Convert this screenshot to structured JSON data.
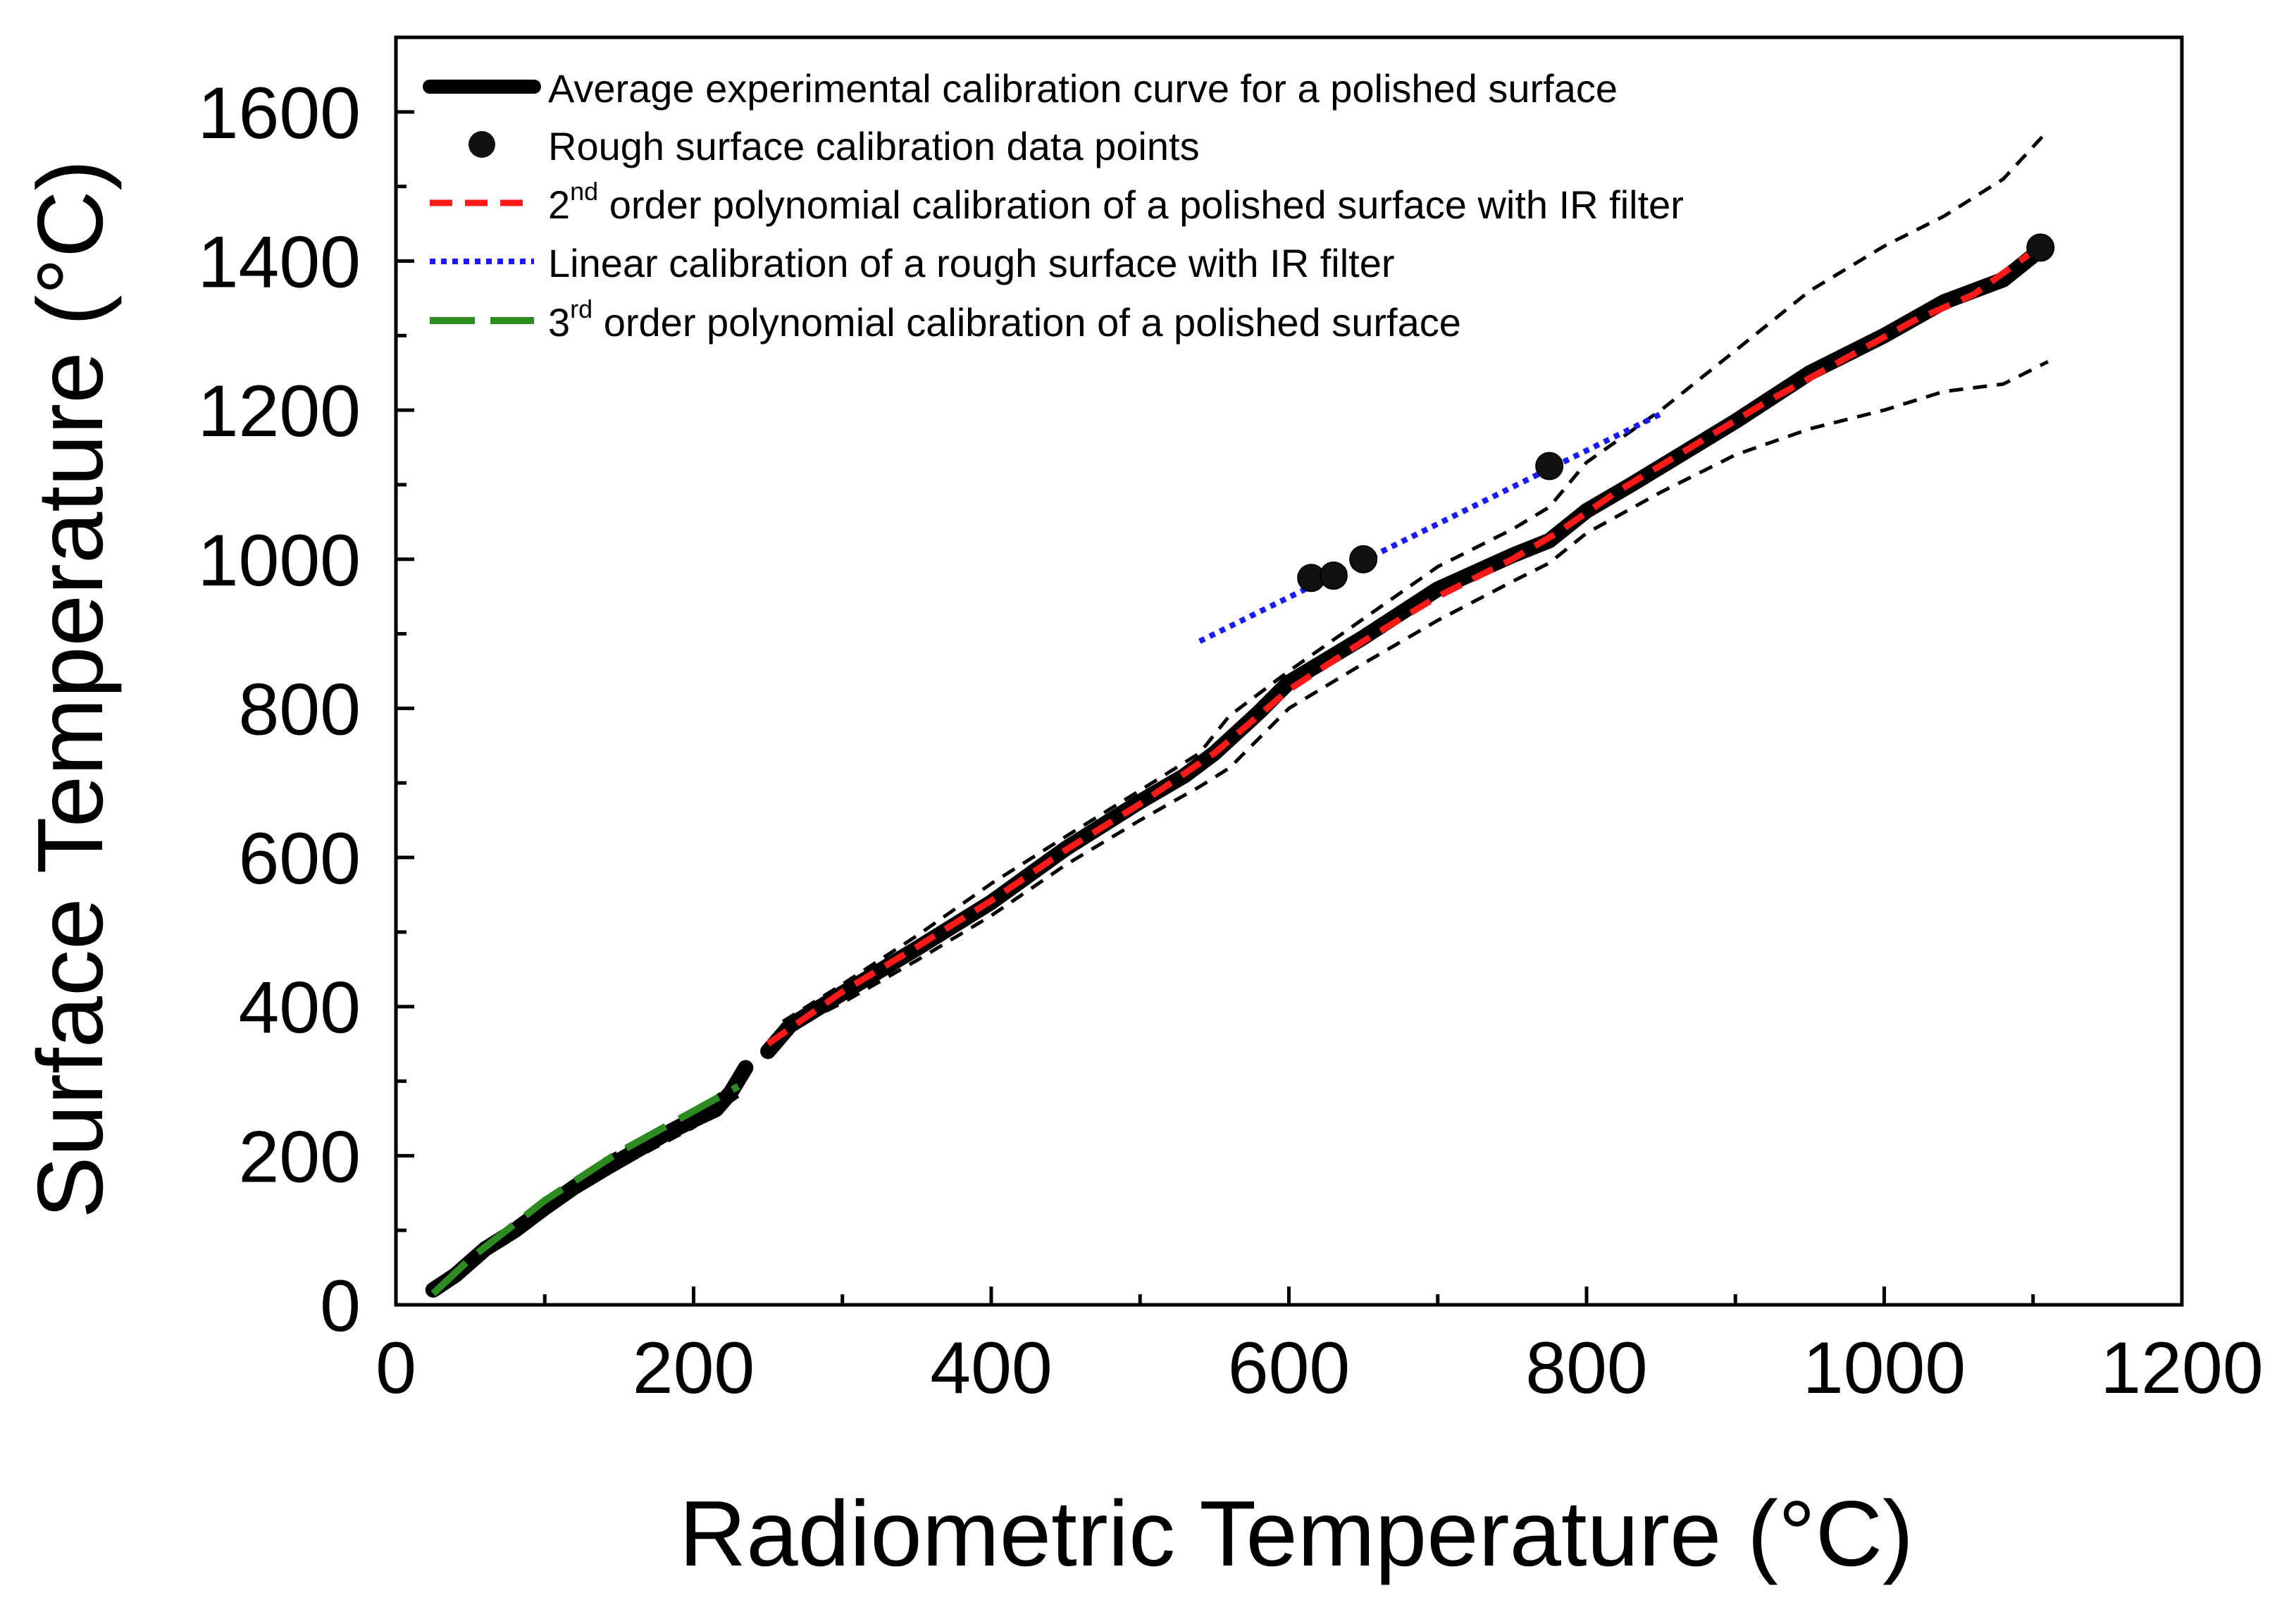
{
  "chart_data": {
    "type": "line",
    "xlabel": "Radiometric Temperature (°C)",
    "ylabel": "Surface Temperature (°C)",
    "xlim": [
      0,
      1200
    ],
    "ylim": [
      0,
      1700
    ],
    "xticks": [
      0,
      200,
      400,
      600,
      800,
      1000,
      1200
    ],
    "xtick_labels": [
      "0",
      "200",
      "400",
      "600",
      "800",
      "1000",
      "1200"
    ],
    "yticks": [
      0,
      200,
      400,
      600,
      800,
      1000,
      1200,
      1400,
      1600
    ],
    "ytick_labels": [
      "0",
      "200",
      "400",
      "600",
      "800",
      "1000",
      "1200",
      "1400",
      "1600"
    ],
    "x_minor_step": 100,
    "y_minor_step": 100,
    "grid": false,
    "legend_position": "top-left",
    "legend": [
      {
        "key": "avg",
        "text": "Average experimental calibration curve for a polished surface",
        "sup": "",
        "rest": ""
      },
      {
        "key": "rough",
        "text": "Rough surface calibration data points",
        "sup": "",
        "rest": ""
      },
      {
        "key": "poly2",
        "text": "2",
        "sup": "nd",
        "rest": " order polynomial calibration of a polished surface with IR filter"
      },
      {
        "key": "linear",
        "text": "Linear calibration of a rough surface with IR filter",
        "sup": "",
        "rest": ""
      },
      {
        "key": "poly3",
        "text": "3",
        "sup": "rd",
        "rest": " order polynomial calibration of a polished surface"
      }
    ],
    "colors": {
      "avg": "#000000",
      "rough": "#111111",
      "poly2": "#ff1a1a",
      "linear": "#1a1aff",
      "poly3": "#2e8b22",
      "bounds": "#000000",
      "axes": "#000000"
    },
    "series": [
      {
        "name": "Average experimental calibration curve for a polished surface",
        "style": "solid-thick",
        "segments": [
          [
            [
              25,
              20
            ],
            [
              40,
              40
            ],
            [
              60,
              75
            ],
            [
              80,
              100
            ],
            [
              100,
              130
            ],
            [
              120,
              158
            ],
            [
              140,
              182
            ],
            [
              160,
              205
            ],
            [
              180,
              228
            ],
            [
              200,
              248
            ],
            [
              215,
              262
            ],
            [
              225,
              285
            ],
            [
              235,
              318
            ]
          ],
          [
            [
              250,
              340
            ],
            [
              265,
              375
            ],
            [
              300,
              418
            ],
            [
              350,
              478
            ],
            [
              400,
              540
            ],
            [
              450,
              612
            ],
            [
              500,
              675
            ],
            [
              530,
              710
            ],
            [
              550,
              740
            ],
            [
              580,
              795
            ],
            [
              600,
              835
            ],
            [
              650,
              895
            ],
            [
              700,
              960
            ],
            [
              750,
              1005
            ],
            [
              775,
              1025
            ],
            [
              800,
              1065
            ],
            [
              830,
              1100
            ],
            [
              900,
              1185
            ],
            [
              950,
              1250
            ],
            [
              1000,
              1300
            ],
            [
              1040,
              1345
            ],
            [
              1080,
              1375
            ],
            [
              1105,
              1415
            ]
          ]
        ]
      },
      {
        "name": "Rough surface calibration data points",
        "style": "markers",
        "points": [
          [
            615,
            975
          ],
          [
            630,
            978
          ],
          [
            650,
            1000
          ],
          [
            775,
            1125
          ],
          [
            1105,
            1418
          ]
        ]
      },
      {
        "name": "2nd order polynomial calibration of a polished surface with IR filter",
        "style": "dashed",
        "segments": [
          [
            [
              250,
              350
            ],
            [
              300,
              420
            ],
            [
              350,
              480
            ],
            [
              400,
              542
            ],
            [
              450,
              610
            ],
            [
              500,
              672
            ],
            [
              550,
              740
            ],
            [
              600,
              825
            ],
            [
              650,
              890
            ],
            [
              700,
              950
            ],
            [
              750,
              1000
            ],
            [
              780,
              1035
            ],
            [
              820,
              1090
            ],
            [
              870,
              1150
            ],
            [
              920,
              1210
            ],
            [
              970,
              1265
            ],
            [
              1020,
              1320
            ],
            [
              1060,
              1355
            ],
            [
              1105,
              1420
            ]
          ]
        ]
      },
      {
        "name": "Linear calibration of a rough surface with IR filter",
        "style": "dotted",
        "segments": [
          [
            [
              540,
              890
            ],
            [
              850,
              1195
            ]
          ]
        ]
      },
      {
        "name": "3rd order polynomial calibration of a polished surface",
        "style": "dash-long",
        "segments": [
          [
            [
              25,
              15
            ],
            [
              50,
              62
            ],
            [
              100,
              140
            ],
            [
              150,
              205
            ],
            [
              200,
              260
            ],
            [
              230,
              293
            ]
          ]
        ]
      },
      {
        "name": "Upper bound",
        "style": "thin-dashed",
        "segments": [
          [
            [
              140,
              195
            ],
            [
              200,
              258
            ],
            [
              230,
              300
            ]
          ],
          [
            [
              260,
              380
            ],
            [
              300,
              430
            ],
            [
              350,
              495
            ],
            [
              400,
              565
            ],
            [
              450,
              628
            ],
            [
              500,
              690
            ],
            [
              540,
              740
            ],
            [
              560,
              790
            ],
            [
              600,
              850
            ],
            [
              650,
              920
            ],
            [
              700,
              990
            ],
            [
              750,
              1040
            ],
            [
              775,
              1070
            ],
            [
              800,
              1130
            ],
            [
              850,
              1200
            ],
            [
              900,
              1280
            ],
            [
              950,
              1360
            ],
            [
              1000,
              1420
            ],
            [
              1040,
              1460
            ],
            [
              1080,
              1510
            ],
            [
              1110,
              1575
            ]
          ]
        ]
      },
      {
        "name": "Lower bound",
        "style": "thin-dashed",
        "segments": [
          [
            [
              140,
              175
            ],
            [
              200,
              238
            ],
            [
              230,
              280
            ]
          ],
          [
            [
              260,
              365
            ],
            [
              300,
              405
            ],
            [
              350,
              462
            ],
            [
              400,
              522
            ],
            [
              450,
              590
            ],
            [
              500,
              650
            ],
            [
              540,
              695
            ],
            [
              560,
              720
            ],
            [
              600,
              800
            ],
            [
              650,
              860
            ],
            [
              700,
              918
            ],
            [
              750,
              970
            ],
            [
              775,
              995
            ],
            [
              800,
              1035
            ],
            [
              850,
              1090
            ],
            [
              900,
              1140
            ],
            [
              950,
              1175
            ],
            [
              1000,
              1200
            ],
            [
              1040,
              1225
            ],
            [
              1080,
              1235
            ],
            [
              1110,
              1265
            ]
          ]
        ]
      }
    ]
  }
}
